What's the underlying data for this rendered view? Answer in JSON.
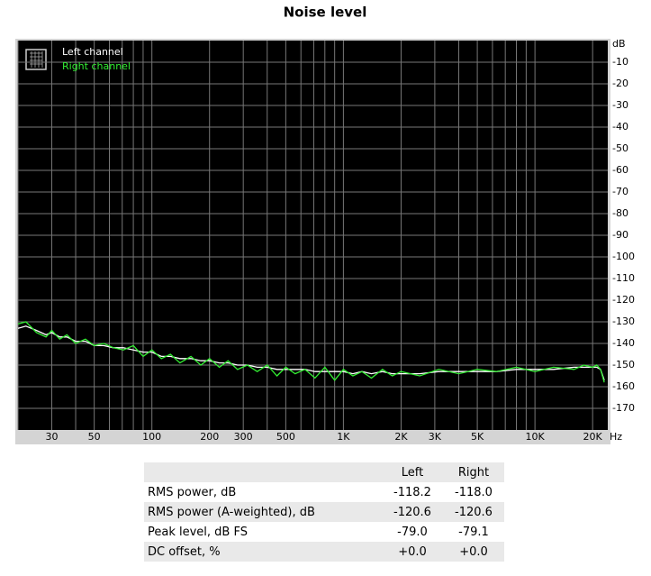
{
  "chart_data": {
    "type": "line",
    "title": "Noise level",
    "x": [
      20,
      22,
      25,
      28,
      30,
      33,
      36,
      40,
      45,
      50,
      56,
      63,
      71,
      80,
      90,
      100,
      112,
      125,
      140,
      160,
      180,
      200,
      225,
      250,
      280,
      315,
      355,
      400,
      450,
      500,
      560,
      630,
      710,
      800,
      900,
      1000,
      1120,
      1250,
      1400,
      1600,
      1800,
      2000,
      2500,
      3150,
      4000,
      5000,
      6300,
      8000,
      10000,
      12500,
      16000,
      18000,
      20000,
      21000,
      22000,
      23000
    ],
    "series": [
      {
        "name": "Left channel",
        "color": "#ffffff",
        "values": [
          -133,
          -132,
          -134,
          -136,
          -135,
          -137,
          -137,
          -139,
          -139,
          -141,
          -141,
          -142,
          -142,
          -143,
          -144,
          -144,
          -146,
          -146,
          -147,
          -147,
          -148,
          -148,
          -149,
          -149,
          -150,
          -150,
          -151,
          -151,
          -152,
          -152,
          -152,
          -152,
          -153,
          -153,
          -153,
          -153,
          -154,
          -153,
          -154,
          -153,
          -154,
          -154,
          -154,
          -153,
          -153,
          -153,
          -153,
          -152,
          -152,
          -152,
          -151,
          -151,
          -151,
          -151,
          -152,
          -157
        ]
      },
      {
        "name": "Right channel",
        "color": "#33ee33",
        "values": [
          -131,
          -130,
          -135,
          -137,
          -134,
          -138,
          -136,
          -140,
          -138,
          -141,
          -140,
          -142,
          -143,
          -141,
          -146,
          -143,
          -147,
          -145,
          -149,
          -146,
          -150,
          -147,
          -151,
          -148,
          -152,
          -150,
          -153,
          -150,
          -155,
          -151,
          -154,
          -152,
          -156,
          -151,
          -157,
          -152,
          -155,
          -153,
          -156,
          -152,
          -155,
          -153,
          -155,
          -152,
          -154,
          -152,
          -153,
          -151,
          -153,
          -151,
          -152,
          -150,
          -151,
          -150,
          -152,
          -158
        ]
      }
    ],
    "xlim": [
      20,
      24000
    ],
    "ylim": [
      -180,
      0
    ],
    "x_log": true,
    "grid": true,
    "legend": "upper left",
    "x_unit": "Hz",
    "y_unit": "dB",
    "xticks": [
      30,
      50,
      100,
      200,
      300,
      500,
      {
        "value": 1000,
        "label": "1K"
      },
      {
        "value": 2000,
        "label": "2K"
      },
      {
        "value": 3000,
        "label": "3K"
      },
      {
        "value": 5000,
        "label": "5K"
      },
      {
        "value": 10000,
        "label": "10K"
      },
      {
        "value": 20000,
        "label": "20K"
      }
    ],
    "x_minor_ticks": [
      20,
      40,
      60,
      70,
      80,
      90,
      400,
      600,
      700,
      800,
      900,
      4000,
      6000,
      7000,
      8000,
      9000
    ],
    "yticks": [
      -10,
      -20,
      -30,
      -40,
      -50,
      -60,
      -70,
      -80,
      -90,
      -100,
      -110,
      -120,
      -130,
      -140,
      -150,
      -160,
      -170
    ]
  },
  "table": {
    "columns": [
      "Left",
      "Right"
    ],
    "rows": [
      [
        "RMS power, dB",
        "-118.2",
        "-118.0"
      ],
      [
        "RMS power (A-weighted), dB",
        "-120.6",
        "-120.6"
      ],
      [
        "Peak level, dB FS",
        "-79.0",
        "-79.1"
      ],
      [
        "DC offset, %",
        "+0.0",
        "+0.0"
      ]
    ]
  }
}
